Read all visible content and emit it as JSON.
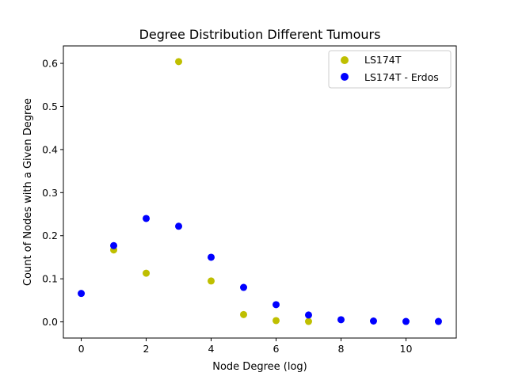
{
  "chart_data": {
    "type": "scatter",
    "title": "Degree Distribution Different Tumours",
    "xlabel": "Node Degree (log)",
    "ylabel": "Count of Nodes with a Given Degree",
    "xlim": [
      -0.55,
      11.55
    ],
    "ylim": [
      -0.0375,
      0.6405
    ],
    "xticks": [
      0,
      2,
      4,
      6,
      8,
      10
    ],
    "xtick_labels": [
      "0",
      "2",
      "4",
      "6",
      "8",
      "10"
    ],
    "yticks": [
      0.0,
      0.1,
      0.2,
      0.3,
      0.4,
      0.5,
      0.6
    ],
    "ytick_labels": [
      "0.0",
      "0.1",
      "0.2",
      "0.3",
      "0.4",
      "0.5",
      "0.6"
    ],
    "grid": false,
    "legend_position": "top-right",
    "series": [
      {
        "name": "LS174T",
        "color": "#bfbf00",
        "x": [
          1,
          2,
          3,
          4,
          5,
          6,
          7
        ],
        "y": [
          0.167,
          0.113,
          0.604,
          0.095,
          0.017,
          0.003,
          0.001
        ]
      },
      {
        "name": "LS174T - Erdos",
        "color": "#0000ff",
        "x": [
          0,
          1,
          2,
          3,
          4,
          5,
          6,
          7,
          8,
          9,
          10,
          11
        ],
        "y": [
          0.066,
          0.177,
          0.24,
          0.222,
          0.15,
          0.08,
          0.04,
          0.016,
          0.005,
          0.002,
          0.001,
          0.001
        ]
      }
    ]
  }
}
